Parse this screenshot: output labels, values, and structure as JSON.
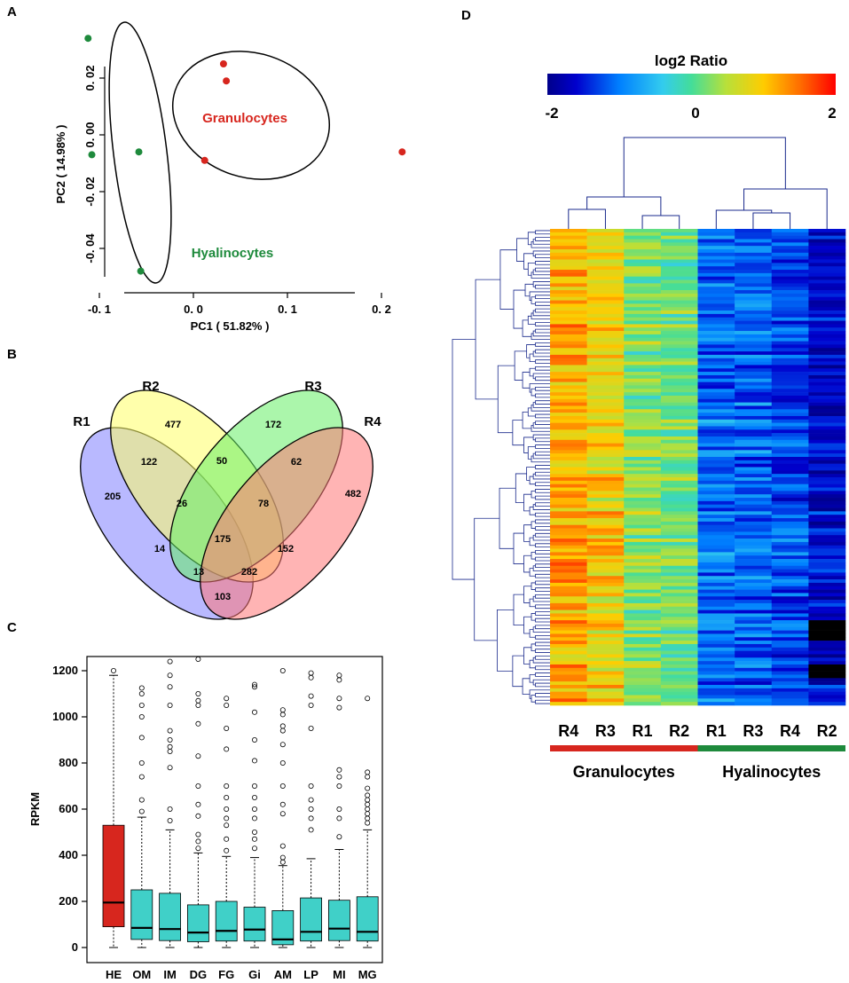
{
  "panels": {
    "a": "A",
    "b": "B",
    "c": "C",
    "d": "D"
  },
  "colors": {
    "granulocytes": "#d7261e",
    "hyalinocytes": "#1e8a3c",
    "box_he": "#d7261e",
    "box_other": "#40d0c8"
  },
  "chart_data": [
    {
      "type": "scatter",
      "panel": "A",
      "xlabel": "PC1 ( 51.82% )",
      "ylabel": "PC2 ( 14.98% )",
      "xlim": [
        -0.13,
        0.23
      ],
      "ylim": [
        -0.05,
        0.04
      ],
      "x_ticks": [
        -0.1,
        0.0,
        0.1,
        0.2
      ],
      "x_tick_labels": [
        "-0. 1",
        "0. 0",
        "0. 1",
        "0. 2"
      ],
      "y_ticks": [
        -0.04,
        -0.02,
        0.0,
        0.02
      ],
      "y_tick_labels": [
        "-0. 04",
        "-0. 02",
        "0. 00",
        "0. 02"
      ],
      "series": [
        {
          "name": "Granulocytes",
          "label": "Granulocytes",
          "color": "#d7261e",
          "points": [
            [
              0.032,
              0.025
            ],
            [
              0.035,
              0.019
            ],
            [
              0.012,
              -0.009
            ],
            [
              0.222,
              -0.006
            ]
          ]
        },
        {
          "name": "Hyalinocytes",
          "label": "Hyalinocytes",
          "color": "#1e8a3c",
          "points": [
            [
              -0.112,
              0.034
            ],
            [
              -0.108,
              -0.007
            ],
            [
              -0.058,
              -0.006
            ],
            [
              -0.056,
              -0.048
            ]
          ]
        }
      ]
    },
    {
      "type": "venn",
      "panel": "B",
      "sets": [
        "R1",
        "R2",
        "R3",
        "R4"
      ],
      "regions": {
        "R1": 205,
        "R2": 477,
        "R3": 172,
        "R4": 482,
        "R1_R2": 122,
        "R2_R3": 50,
        "R3_R4": 62,
        "R1_R4": 103,
        "R1_R2_R3": 26,
        "R2_R3_R4": 78,
        "R1_R3": 14,
        "R2_R4": 152,
        "R1_R2_R3_R4": 175,
        "R1_R3_R4": 13,
        "R1_R2_R4": 282
      }
    },
    {
      "type": "box",
      "panel": "C",
      "ylabel": "RPKM",
      "ylim": [
        -40,
        1250
      ],
      "y_ticks": [
        0,
        200,
        400,
        600,
        800,
        1000,
        1200
      ],
      "categories": [
        "HE",
        "OM",
        "IM",
        "DG",
        "FG",
        "Gi",
        "AM",
        "LP",
        "MI",
        "MG"
      ],
      "boxes": [
        {
          "q1": 90,
          "median": 195,
          "q3": 530,
          "whisker_low": 0,
          "whisker_high": 1180,
          "outliers": [
            1200
          ]
        },
        {
          "q1": 35,
          "median": 85,
          "q3": 250,
          "whisker_low": 0,
          "whisker_high": 565,
          "outliers": [
            590,
            640,
            740,
            800,
            910,
            1000,
            1050,
            1100,
            1125
          ]
        },
        {
          "q1": 30,
          "median": 80,
          "q3": 235,
          "whisker_low": 0,
          "whisker_high": 510,
          "outliers": [
            550,
            600,
            780,
            850,
            870,
            900,
            940,
            1050,
            1130,
            1180,
            1240
          ]
        },
        {
          "q1": 25,
          "median": 65,
          "q3": 185,
          "whisker_low": 0,
          "whisker_high": 410,
          "outliers": [
            430,
            460,
            490,
            570,
            620,
            700,
            830,
            970,
            1050,
            1070,
            1100,
            1250
          ]
        },
        {
          "q1": 28,
          "median": 72,
          "q3": 200,
          "whisker_low": 0,
          "whisker_high": 395,
          "outliers": [
            420,
            470,
            530,
            560,
            600,
            650,
            700,
            860,
            950,
            1050,
            1080
          ]
        },
        {
          "q1": 28,
          "median": 78,
          "q3": 175,
          "whisker_low": 0,
          "whisker_high": 390,
          "outliers": [
            430,
            470,
            500,
            560,
            600,
            650,
            700,
            810,
            900,
            1020,
            1130,
            1140
          ]
        },
        {
          "q1": 12,
          "median": 35,
          "q3": 160,
          "whisker_low": 0,
          "whisker_high": 355,
          "outliers": [
            370,
            390,
            440,
            580,
            620,
            700,
            800,
            880,
            940,
            960,
            1010,
            1030,
            1200
          ]
        },
        {
          "q1": 28,
          "median": 68,
          "q3": 215,
          "whisker_low": 0,
          "whisker_high": 385,
          "outliers": [
            510,
            560,
            600,
            640,
            700,
            950,
            1050,
            1090,
            1170,
            1190
          ]
        },
        {
          "q1": 30,
          "median": 82,
          "q3": 205,
          "whisker_low": 0,
          "whisker_high": 425,
          "outliers": [
            480,
            560,
            600,
            700,
            740,
            770,
            1040,
            1080,
            1160,
            1180
          ]
        },
        {
          "q1": 28,
          "median": 68,
          "q3": 220,
          "whisker_low": 0,
          "whisker_high": 510,
          "outliers": [
            540,
            560,
            580,
            600,
            620,
            640,
            660,
            690,
            740,
            760,
            1080
          ]
        }
      ]
    },
    {
      "type": "heatmap",
      "panel": "D",
      "title": "log2 Ratio",
      "color_range": [
        -2,
        2
      ],
      "color_tick_labels": [
        "-2",
        "0",
        "2"
      ],
      "columns": [
        "R4",
        "R3",
        "R1",
        "R2",
        "R1",
        "R3",
        "R4",
        "R2"
      ],
      "groups": [
        {
          "label": "Granulocytes",
          "color": "#d7261e",
          "columns": 4
        },
        {
          "label": "Hyalinocytes",
          "color": "#1e8a3c",
          "columns": 4
        }
      ],
      "column_means": [
        1.15,
        0.9,
        0.3,
        0.2,
        -1.05,
        -1.1,
        -1.25,
        -1.6
      ],
      "n_rows": 140,
      "row_clusters": 8
    }
  ]
}
